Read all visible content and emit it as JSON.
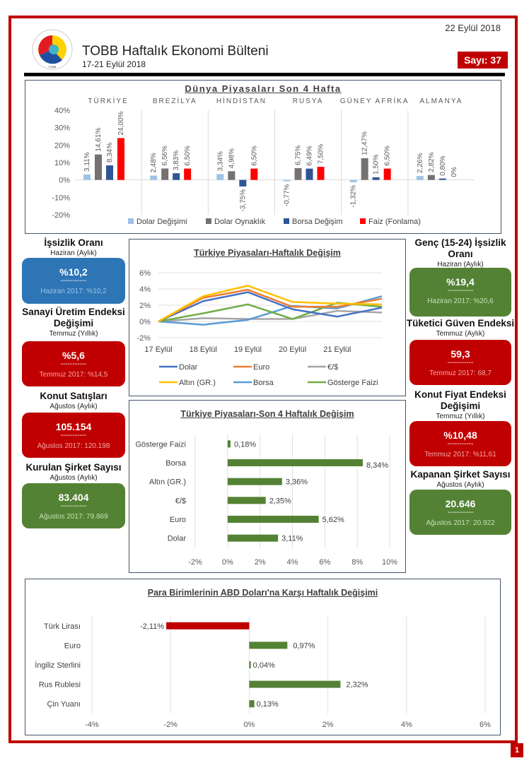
{
  "header": {
    "date": "22 Eylül 2018",
    "title": "TOBB Haftalık Ekonomi Bülteni",
    "period": "17-21 Eylül 2018",
    "issue": "Sayı: 37",
    "logo_icon": "tobb-logo-icon"
  },
  "colors": {
    "brand_red": "#c00000",
    "blue": "#2e75b6",
    "green": "#548235"
  },
  "left_kpis": [
    {
      "title": "İşsizlik Oranı",
      "period": "Haziran (Aylık)",
      "value": "%10,2",
      "dash": "-----------",
      "previous": "Haziran 2017: %10,2",
      "color": "blue"
    },
    {
      "title": "Sanayi Üretim Endeksi Değişimi",
      "period": "Temmuz (Yıllık)",
      "value": "%5,6",
      "dash": "-----------",
      "previous": "Temmuz 2017: %14,5",
      "color": "red"
    },
    {
      "title": "Konut Satışları",
      "period": "Ağustos (Aylık)",
      "value": "105.154",
      "dash": "-----------",
      "previous": "Ağustos 2017: 120.198",
      "color": "red"
    },
    {
      "title": "Kurulan Şirket Sayısı",
      "period": "Ağustos (Aylık)",
      "value": "83.404",
      "dash": "-----------",
      "previous": "Ağustos 2017: 79.869",
      "color": "green"
    }
  ],
  "right_kpis": [
    {
      "title": "Genç (15-24) İşsizlik Oranı",
      "period": "Haziran (Aylık)",
      "value": "%19,4",
      "dash": "-----------",
      "previous": "Haziran 2017: %20,6",
      "color": "green"
    },
    {
      "title": "Tüketici Güven Endeksi",
      "period": "Temmuz (Aylık)",
      "value": "59,3",
      "dash": "-----------",
      "previous": "Temmuz 2017: 68,7",
      "color": "red"
    },
    {
      "title": "Konut Fiyat Endeksi Değişimi",
      "period": "Temmuz (Yıllık)",
      "value": "%10,48",
      "dash": "-----------",
      "previous": "Temmuz 2017: %11,61",
      "color": "red"
    },
    {
      "title": "Kapanan Şirket Sayısı",
      "period": "Ağustos (Aylık)",
      "value": "20.646",
      "dash": "-----------",
      "previous": "Ağustos 2017: 20.922",
      "color": "green"
    }
  ],
  "page_number": "1",
  "chart_data": [
    {
      "id": "world",
      "type": "bar",
      "title": "Dünya Piyasaları Son 4 Hafta",
      "categories": [
        "TÜRKİYE",
        "BREZİLYA",
        "HİNDİSTAN",
        "RUSYA",
        "GÜNEY AFRİKA",
        "ALMANYA"
      ],
      "series": [
        {
          "name": "Dolar Değişimi",
          "color": "#9dc3e6",
          "values": [
            3.11,
            2.48,
            3.34,
            -0.77,
            -1.32,
            2.26
          ],
          "labels": [
            "3,11%",
            "2,48%",
            "3,34%",
            "-0,77%",
            "-1,32%",
            "2,26%"
          ]
        },
        {
          "name": "Dolar Oynaklık",
          "color": "#767171",
          "values": [
            14.61,
            6.56,
            4.98,
            6.75,
            12.47,
            2.82
          ],
          "labels": [
            "14,61%",
            "6,56%",
            "4,98%",
            "6,75%",
            "12,47%",
            "2,82%"
          ]
        },
        {
          "name": "Borsa Değişim",
          "color": "#2f5597",
          "values": [
            8.34,
            3.83,
            -3.75,
            6.49,
            1.5,
            0.8
          ],
          "labels": [
            "8,34%",
            "3,83%",
            "-3,75%",
            "6,49%",
            "1,50%",
            "0,80%"
          ]
        },
        {
          "name": "Faiz (Fonlama)",
          "color": "#ff0000",
          "values": [
            24.0,
            6.5,
            6.5,
            7.5,
            6.5,
            0
          ],
          "labels": [
            "24,00%",
            "6,50%",
            "6,50%",
            "7,50%",
            "6,50%",
            "0%"
          ]
        }
      ],
      "yticks": [
        "40%",
        "30%",
        "20%",
        "10%",
        "0%",
        "-10%",
        "-20%"
      ],
      "ylim": [
        -20,
        40
      ],
      "legend": "bottom"
    },
    {
      "id": "weekly",
      "type": "line",
      "title": "Türkiye Piyasaları-Haftalık Değişim",
      "x": [
        "17 Eylül",
        "18 Eylül",
        "19 Eylül",
        "20 Eylül",
        "21 Eylül",
        ""
      ],
      "series": [
        {
          "name": "Dolar",
          "color": "#4472c4",
          "values": [
            0,
            2.5,
            3.6,
            1.5,
            0.6,
            1.7
          ]
        },
        {
          "name": "Euro",
          "color": "#ed7d31",
          "values": [
            0,
            2.9,
            3.9,
            1.8,
            1.8,
            2.8
          ]
        },
        {
          "name": "€/$",
          "color": "#a5a5a5",
          "values": [
            0,
            0.4,
            0.3,
            0.3,
            1.3,
            1.1
          ]
        },
        {
          "name": "Altın (GR.)",
          "color": "#ffc000",
          "values": [
            0,
            3.1,
            4.4,
            2.4,
            2.2,
            2.1
          ]
        },
        {
          "name": "Borsa",
          "color": "#5b9bd5",
          "values": [
            0,
            -0.4,
            0.2,
            1.9,
            1.6,
            3.1
          ]
        },
        {
          "name": "Gösterge Faizi",
          "color": "#70ad47",
          "values": [
            0,
            1.0,
            2.1,
            0.3,
            2.3,
            1.8
          ]
        }
      ],
      "yticks": [
        "6%",
        "4%",
        "2%",
        "0%",
        "-2%"
      ],
      "ylim": [
        -2,
        6
      ],
      "legend": "bottom"
    },
    {
      "id": "fourweek",
      "type": "bar",
      "orientation": "horizontal",
      "title": "Türkiye Piyasaları-Son 4 Haftalık Değişim",
      "categories": [
        "Gösterge Faizi",
        "Borsa",
        "Altın (GR.)",
        "€/$",
        "Euro",
        "Dolar"
      ],
      "values": [
        0.18,
        8.34,
        3.36,
        2.35,
        5.62,
        3.11
      ],
      "labels": [
        "0,18%",
        "8,34%",
        "3,36%",
        "2,35%",
        "5,62%",
        "3,11%"
      ],
      "color": "#548235",
      "xticks": [
        "-2%",
        "0%",
        "2%",
        "4%",
        "6%",
        "8%",
        "10%"
      ],
      "xlim": [
        -2,
        10
      ]
    },
    {
      "id": "currencies",
      "type": "bar",
      "orientation": "horizontal",
      "title": "Para Birimlerinin ABD Doları'na Karşı Haftalık Değişimi",
      "categories": [
        "Türk Lirası",
        "Euro",
        "İngiliz Sterlini",
        "Rus Rublesi",
        "Çin Yuanı"
      ],
      "values": [
        -2.11,
        0.97,
        0.04,
        2.32,
        0.13
      ],
      "labels": [
        "-2,11%",
        "0,97%",
        "0,04%",
        "2,32%",
        "0,13%"
      ],
      "positive_color": "#548235",
      "negative_color": "#c00000",
      "xticks": [
        "-4%",
        "-2%",
        "0%",
        "2%",
        "4%",
        "6%"
      ],
      "xlim": [
        -4,
        6
      ]
    }
  ]
}
